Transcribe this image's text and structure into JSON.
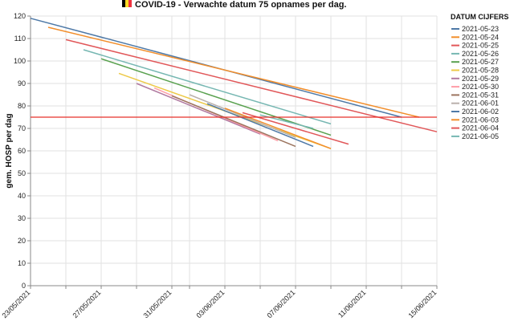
{
  "chart_data": {
    "type": "line",
    "title": "COVID-19 - Verwachte datum 75 opnames per dag.",
    "title_icon": "belgium-flag-icon",
    "ylabel": "gem. HOSP per dag",
    "xlabel": "",
    "ylim": [
      0,
      120
    ],
    "y_ticks": [
      0,
      10,
      20,
      30,
      40,
      50,
      60,
      70,
      80,
      90,
      100,
      110,
      120
    ],
    "xlim": [
      "2021-05-23",
      "2021-06-15"
    ],
    "x_tick_labels": [
      "23/05/2021",
      "27/05/2021",
      "31/05/2021",
      "03/06/2021",
      "07/06/2021",
      "11/06/2021",
      "15/06/2021"
    ],
    "x_tick_dates": [
      "2021-05-23",
      "2021-05-27",
      "2021-05-31",
      "2021-06-03",
      "2021-06-07",
      "2021-06-11",
      "2021-06-15"
    ],
    "grid": true,
    "legend_title": "DATUM CIJFERS",
    "legend_position": "right",
    "threshold": {
      "value": 75,
      "color": "#e8302a"
    },
    "series": [
      {
        "name": "2021-05-23",
        "color": "#4e79a7",
        "points": [
          [
            "2021-05-23",
            119
          ],
          [
            "2021-06-13",
            75
          ]
        ]
      },
      {
        "name": "2021-05-24",
        "color": "#f28e2b",
        "points": [
          [
            "2021-05-24",
            115
          ],
          [
            "2021-06-14",
            75
          ]
        ]
      },
      {
        "name": "2021-05-25",
        "color": "#e15759",
        "points": [
          [
            "2021-05-25",
            109.5
          ],
          [
            "2021-06-15",
            68.5
          ]
        ]
      },
      {
        "name": "2021-05-26",
        "color": "#76b7b2",
        "points": [
          [
            "2021-05-26",
            105
          ],
          [
            "2021-06-09",
            72
          ]
        ]
      },
      {
        "name": "2021-05-27",
        "color": "#59a14f",
        "points": [
          [
            "2021-05-27",
            101
          ],
          [
            "2021-06-09",
            67
          ]
        ]
      },
      {
        "name": "2021-05-28",
        "color": "#edc948",
        "points": [
          [
            "2021-05-28",
            94.5
          ],
          [
            "2021-06-09",
            61
          ]
        ]
      },
      {
        "name": "2021-05-29",
        "color": "#b07aa1",
        "points": [
          [
            "2021-05-29",
            90
          ],
          [
            "2021-06-05",
            67.5
          ]
        ]
      },
      {
        "name": "2021-05-30",
        "color": "#ff9da7",
        "points": [
          [
            "2021-05-30",
            88
          ],
          [
            "2021-06-06",
            64.5
          ]
        ]
      },
      {
        "name": "2021-05-31",
        "color": "#9c755f",
        "points": [
          [
            "2021-05-31",
            84.5
          ],
          [
            "2021-06-07",
            62
          ]
        ]
      },
      {
        "name": "2021-06-01",
        "color": "#bab0ac",
        "points": [
          [
            "2021-06-01",
            85
          ],
          [
            "2021-06-07",
            66
          ]
        ]
      },
      {
        "name": "2021-06-02",
        "color": "#4e79a7",
        "points": [
          [
            "2021-06-02",
            81
          ],
          [
            "2021-06-08",
            62
          ]
        ]
      },
      {
        "name": "2021-06-03",
        "color": "#f28e2b",
        "points": [
          [
            "2021-06-03",
            79
          ],
          [
            "2021-06-09",
            61
          ]
        ]
      },
      {
        "name": "2021-06-04",
        "color": "#e15759",
        "points": [
          [
            "2021-06-04",
            77
          ],
          [
            "2021-06-10",
            63
          ]
        ]
      },
      {
        "name": "2021-06-05",
        "color": "#76b7b2",
        "points": [
          [
            "2021-06-05",
            76
          ],
          [
            "2021-06-08",
            70
          ]
        ]
      }
    ]
  }
}
